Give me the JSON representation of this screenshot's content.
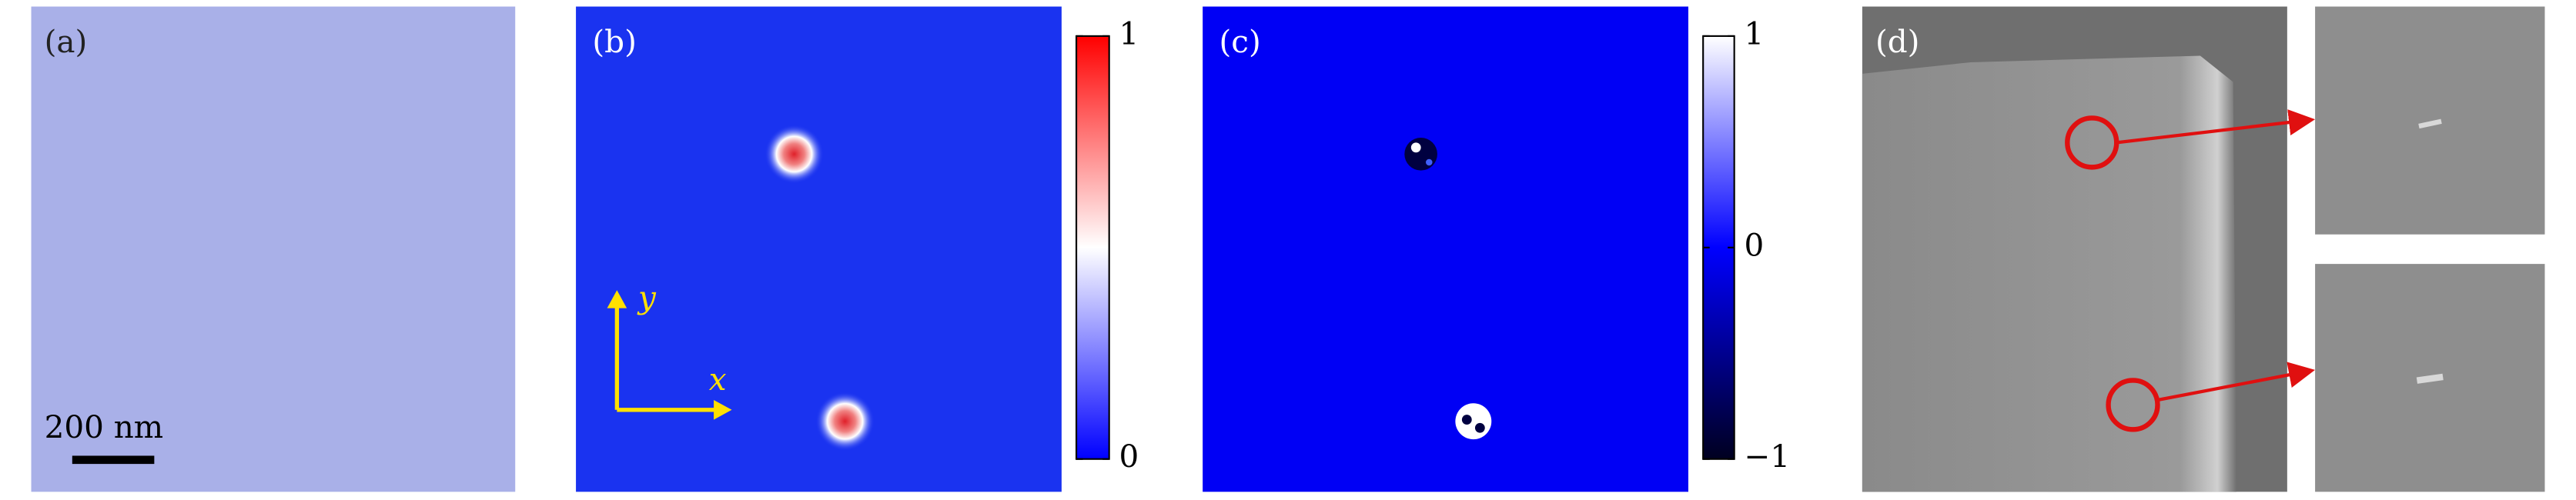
{
  "panels": [
    {
      "label": "(a)",
      "scale_bar": "200 nm"
    },
    {
      "label": "(b)",
      "axis_x": "x",
      "axis_y": "y",
      "colorbar_ticks": [
        1,
        0
      ]
    },
    {
      "label": "(c)",
      "colorbar_ticks": [
        1,
        0,
        {
          "value": -1,
          "label": "−1"
        }
      ]
    },
    {
      "label": "(d)"
    }
  ]
}
